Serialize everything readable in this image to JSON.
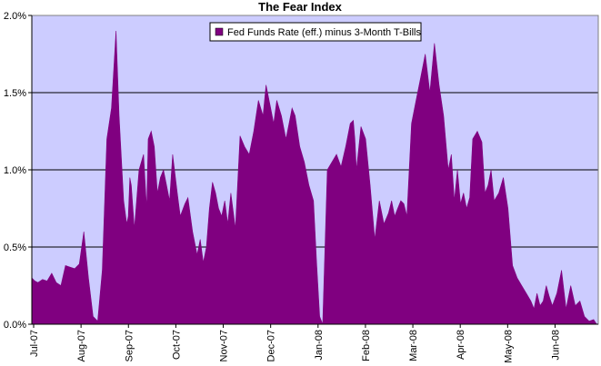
{
  "chart_data": {
    "type": "area",
    "title": "The Fear Index",
    "xlabel": "",
    "ylabel": "",
    "ylim": [
      0,
      2.0
    ],
    "y_ticks": [
      "0.0%",
      "0.5%",
      "1.0%",
      "1.5%",
      "2.0%"
    ],
    "y_tick_values": [
      0,
      0.5,
      1.0,
      1.5,
      2.0
    ],
    "x_ticks": [
      "Jul-07",
      "Aug-07",
      "Sep-07",
      "Oct-07",
      "Nov-07",
      "Dec-07",
      "Jan-08",
      "Feb-08",
      "Mar-08",
      "Apr-08",
      "May-08",
      "Jun-08"
    ],
    "grid": "horizontal",
    "legend_position": "top",
    "colors": {
      "plot_background": "#ccccff",
      "series": "#800080",
      "grid": "#000000"
    },
    "series": [
      {
        "name": "Fed Funds Rate (eff.) minus 3-Month T-Bills",
        "x": [
          0,
          2,
          4,
          7,
          10,
          13,
          16,
          19,
          22,
          25,
          28,
          31,
          34,
          37,
          40,
          43,
          46,
          49,
          52,
          55,
          57,
          60,
          62,
          63,
          64,
          65,
          67,
          70,
          73,
          75,
          76,
          78,
          80,
          82,
          84,
          86,
          88,
          90,
          92,
          95,
          97,
          100,
          102,
          105,
          108,
          110,
          112,
          114,
          116,
          118,
          120,
          122,
          124,
          126,
          128,
          130,
          133,
          136,
          139,
          142,
          145,
          148,
          151,
          153,
          156,
          158,
          160,
          163,
          166,
          168,
          170,
          172,
          175,
          178,
          181,
          184,
          186,
          188,
          190,
          193,
          196,
          199,
          202,
          205,
          208,
          210,
          211,
          212,
          215,
          218,
          221,
          224,
          227,
          230,
          233,
          235,
          237,
          239,
          241,
          243,
          245,
          248,
          251,
          254,
          257,
          260,
          263,
          266,
          269,
          272,
          274,
          276,
          278,
          280,
          282,
          284,
          286,
          288,
          291,
          294,
          296,
          298,
          300,
          302,
          305,
          308,
          311,
          314,
          317,
          320,
          323,
          326,
          328,
          330,
          332,
          334,
          336,
          338,
          340,
          343,
          346,
          349,
          352,
          355,
          358,
          361,
          364,
          367,
          369,
          370
        ],
        "values": [
          0.3,
          0.28,
          0.27,
          0.29,
          0.28,
          0.33,
          0.27,
          0.25,
          0.38,
          0.37,
          0.36,
          0.39,
          0.6,
          0.3,
          0.05,
          0.02,
          0.35,
          1.2,
          1.4,
          1.9,
          1.35,
          0.8,
          0.65,
          0.7,
          0.95,
          0.9,
          0.62,
          1.0,
          1.1,
          0.75,
          1.2,
          1.25,
          1.15,
          0.85,
          0.95,
          1.0,
          0.9,
          0.8,
          1.1,
          0.85,
          0.7,
          0.78,
          0.82,
          0.6,
          0.45,
          0.55,
          0.4,
          0.5,
          0.75,
          0.92,
          0.85,
          0.75,
          0.7,
          0.8,
          0.65,
          0.85,
          0.62,
          1.22,
          1.15,
          1.1,
          1.25,
          1.45,
          1.35,
          1.55,
          1.4,
          1.3,
          1.45,
          1.35,
          1.2,
          1.3,
          1.4,
          1.35,
          1.15,
          1.05,
          0.9,
          0.8,
          0.4,
          0.05,
          0.0,
          1.0,
          1.05,
          1.1,
          1.02,
          1.15,
          1.3,
          1.32,
          1.2,
          1.0,
          1.28,
          1.2,
          0.9,
          0.55,
          0.8,
          0.65,
          0.72,
          0.8,
          0.7,
          0.75,
          0.8,
          0.78,
          0.7,
          1.3,
          1.45,
          1.6,
          1.75,
          1.5,
          1.82,
          1.55,
          1.35,
          1.0,
          1.1,
          0.8,
          1.0,
          0.78,
          0.85,
          0.75,
          0.82,
          1.2,
          1.25,
          1.18,
          0.85,
          0.9,
          1.0,
          0.8,
          0.85,
          0.95,
          0.75,
          0.38,
          0.3,
          0.25,
          0.2,
          0.15,
          0.1,
          0.2,
          0.12,
          0.15,
          0.25,
          0.18,
          0.12,
          0.2,
          0.35,
          0.1,
          0.25,
          0.12,
          0.15,
          0.05,
          0.02,
          0.03,
          0.0,
          0.0
        ],
        "x_max": 370
      }
    ]
  }
}
